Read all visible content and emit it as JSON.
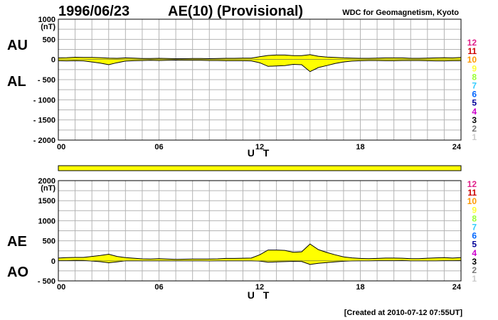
{
  "header": {
    "date": "1996/06/23",
    "title": "AE(10) (Provisional)",
    "source": "WDC for Geomagnetism, Kyoto"
  },
  "footer": {
    "created": "[Created at 2010-07-12 07:55UT]"
  },
  "legend": {
    "entries": [
      {
        "label": "12",
        "color": "#e0218a"
      },
      {
        "label": "11",
        "color": "#cc0000"
      },
      {
        "label": "10",
        "color": "#ff9900"
      },
      {
        "label": "9",
        "color": "#ffff33"
      },
      {
        "label": "8",
        "color": "#99ff33"
      },
      {
        "label": "7",
        "color": "#33ccff"
      },
      {
        "label": "6",
        "color": "#0066ff"
      },
      {
        "label": "5",
        "color": "#000099"
      },
      {
        "label": "4",
        "color": "#cc00cc"
      },
      {
        "label": "3",
        "color": "#000000"
      },
      {
        "label": "2",
        "color": "#777777"
      },
      {
        "label": "1",
        "color": "#cccccc"
      }
    ]
  },
  "status_bar": {
    "color": "#ffff00"
  },
  "chart_data": [
    {
      "type": "area",
      "panel": "AU-AL",
      "labels_left": [
        "AU",
        "AL"
      ],
      "unit": "(nT)",
      "xlabel": "U T",
      "xlim": [
        0,
        24
      ],
      "xticks": [
        "00",
        "06",
        "12",
        "18",
        "24"
      ],
      "ylim": [
        -2000,
        1000
      ],
      "yticks": [
        "1000",
        "500",
        "0",
        "- 500",
        "- 1000",
        "- 1500",
        "- 2000"
      ],
      "fill_color": "#ffff00",
      "x": [
        0,
        0.5,
        1,
        1.5,
        2,
        2.5,
        3,
        3.5,
        4,
        4.5,
        5,
        5.5,
        6,
        6.5,
        7,
        7.5,
        8,
        8.5,
        9,
        9.5,
        10,
        10.5,
        11,
        11.5,
        12,
        12.5,
        13,
        13.5,
        14,
        14.5,
        15,
        15.5,
        16,
        16.5,
        17,
        17.5,
        18,
        18.5,
        19,
        19.5,
        20,
        20.5,
        21,
        21.5,
        22,
        22.5,
        23,
        23.5,
        24
      ],
      "series": [
        {
          "name": "AU",
          "values": [
            40,
            45,
            55,
            50,
            50,
            45,
            35,
            30,
            40,
            35,
            25,
            25,
            30,
            25,
            20,
            20,
            25,
            25,
            20,
            25,
            30,
            30,
            35,
            35,
            70,
            100,
            110,
            110,
            95,
            95,
            120,
            80,
            60,
            50,
            40,
            35,
            30,
            30,
            35,
            40,
            40,
            40,
            30,
            30,
            35,
            40,
            45,
            40,
            50
          ]
        },
        {
          "name": "AL",
          "values": [
            -30,
            -35,
            -30,
            -35,
            -60,
            -90,
            -130,
            -80,
            -40,
            -30,
            -25,
            -20,
            -25,
            -20,
            -15,
            -20,
            -20,
            -20,
            -25,
            -25,
            -30,
            -30,
            -30,
            -35,
            -80,
            -170,
            -160,
            -150,
            -120,
            -130,
            -300,
            -200,
            -150,
            -100,
            -60,
            -40,
            -30,
            -25,
            -25,
            -30,
            -30,
            -25,
            -25,
            -25,
            -30,
            -35,
            -35,
            -30,
            -30
          ]
        }
      ]
    },
    {
      "type": "area",
      "panel": "AE-AO",
      "labels_left": [
        "AE",
        "AO"
      ],
      "unit": "(nT)",
      "xlabel": "U T",
      "xlim": [
        0,
        24
      ],
      "xticks": [
        "00",
        "06",
        "12",
        "18",
        "24"
      ],
      "ylim": [
        -500,
        2000
      ],
      "yticks": [
        "2000",
        "1500",
        "1000",
        "500",
        "0",
        "- 500"
      ],
      "fill_color": "#ffff00",
      "x": [
        0,
        0.5,
        1,
        1.5,
        2,
        2.5,
        3,
        3.5,
        4,
        4.5,
        5,
        5.5,
        6,
        6.5,
        7,
        7.5,
        8,
        8.5,
        9,
        9.5,
        10,
        10.5,
        11,
        11.5,
        12,
        12.5,
        13,
        13.5,
        14,
        14.5,
        15,
        15.5,
        16,
        16.5,
        17,
        17.5,
        18,
        18.5,
        19,
        19.5,
        20,
        20.5,
        21,
        21.5,
        22,
        22.5,
        23,
        23.5,
        24
      ],
      "series": [
        {
          "name": "AE",
          "values": [
            70,
            80,
            85,
            85,
            110,
            135,
            165,
            110,
            80,
            65,
            50,
            45,
            55,
            45,
            35,
            40,
            45,
            45,
            45,
            50,
            60,
            60,
            65,
            70,
            150,
            270,
            270,
            260,
            215,
            225,
            420,
            280,
            210,
            150,
            100,
            75,
            60,
            55,
            60,
            70,
            70,
            65,
            55,
            55,
            65,
            75,
            80,
            70,
            80
          ]
        },
        {
          "name": "AO",
          "values": [
            5,
            5,
            12,
            8,
            -5,
            -22,
            -48,
            -25,
            0,
            2,
            0,
            2,
            2,
            2,
            2,
            0,
            2,
            2,
            -2,
            0,
            0,
            0,
            2,
            0,
            -5,
            -35,
            -25,
            -20,
            -12,
            -18,
            -90,
            -60,
            -45,
            -25,
            -10,
            -2,
            0,
            2,
            5,
            5,
            5,
            8,
            2,
            2,
            2,
            2,
            5,
            5,
            10
          ]
        }
      ]
    }
  ]
}
